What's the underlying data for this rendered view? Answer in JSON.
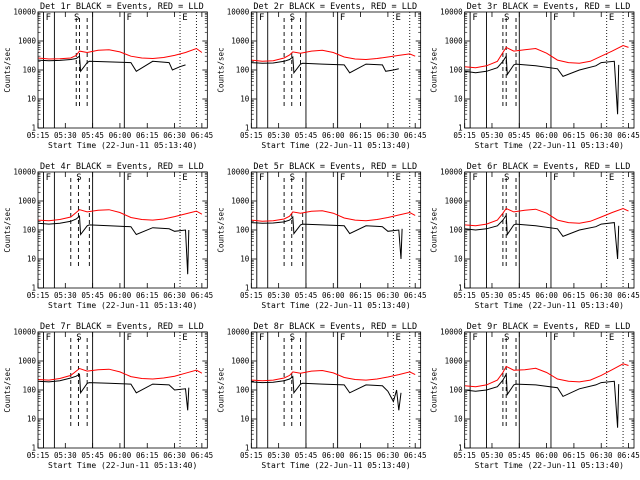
{
  "chart_data": {
    "type": "line",
    "layout": "3x3 grid",
    "y_scale": "log",
    "ylim": [
      1,
      10000
    ],
    "x_range_hours": [
      5.25,
      6.8
    ],
    "y_ticks": [
      "1",
      "10",
      "100",
      "1000",
      "10000"
    ],
    "x_ticks": [
      "05:15",
      "05:30",
      "05:45",
      "06:00",
      "06:15",
      "06:30",
      "06:45"
    ],
    "ylabel": "Counts/sec",
    "xlabel": "Start Time (22-Jun-11 05:13:40)",
    "series_colors": {
      "events": "#000000",
      "lld": "#ff0000"
    },
    "flag_labels": [
      "F",
      "S",
      "F",
      "E"
    ],
    "panels": [
      {
        "title": "Det 1r BLACK = Events, RED = LLD",
        "solid_lines": [
          5.3,
          5.4,
          5.75,
          6.04
        ],
        "dashed_lines": [
          5.63,
          5.6,
          5.7
        ],
        "dotted_lines": [
          6.55,
          6.7
        ],
        "series": [
          {
            "name": "LLD",
            "x": [
              5.25,
              5.35,
              5.45,
              5.55,
              5.6,
              5.63,
              5.7,
              5.8,
              5.9,
              6.0,
              6.1,
              6.2,
              6.3,
              6.4,
              6.5,
              6.6,
              6.7,
              6.75
            ],
            "y": [
              260,
              240,
              245,
              260,
              320,
              450,
              400,
              480,
              500,
              420,
              300,
              260,
              250,
              270,
              320,
              400,
              550,
              400
            ]
          },
          {
            "name": "Events",
            "x": [
              5.25,
              5.35,
              5.45,
              5.55,
              5.6,
              5.63,
              5.64,
              5.7,
              5.72,
              5.9,
              6.1,
              6.15,
              6.3,
              6.45,
              6.48,
              6.55,
              6.6
            ],
            "y": [
              220,
              210,
              215,
              230,
              250,
              300,
              90,
              180,
              200,
              190,
              180,
              90,
              200,
              180,
              100,
              130,
              150
            ]
          }
        ]
      },
      {
        "title": "Det 2r BLACK = Events, RED = LLD",
        "solid_lines": [
          5.3,
          5.4,
          5.75,
          6.04
        ],
        "dashed_lines": [
          5.55,
          5.62,
          5.7
        ],
        "dotted_lines": [
          6.55,
          6.7
        ],
        "series": [
          {
            "name": "LLD",
            "x": [
              5.25,
              5.35,
              5.45,
              5.55,
              5.6,
              5.63,
              5.7,
              5.8,
              5.9,
              6.0,
              6.1,
              6.2,
              6.3,
              6.4,
              6.5,
              6.6,
              6.7,
              6.75
            ],
            "y": [
              220,
              200,
              210,
              260,
              330,
              420,
              380,
              450,
              480,
              400,
              280,
              240,
              230,
              250,
              280,
              320,
              360,
              300
            ]
          },
          {
            "name": "Events",
            "x": [
              5.25,
              5.35,
              5.45,
              5.55,
              5.6,
              5.63,
              5.64,
              5.7,
              5.72,
              5.9,
              6.1,
              6.15,
              6.3,
              6.45,
              6.48,
              6.55,
              6.6
            ],
            "y": [
              180,
              170,
              175,
              200,
              230,
              280,
              80,
              160,
              170,
              160,
              150,
              80,
              160,
              150,
              90,
              100,
              110
            ]
          }
        ]
      },
      {
        "title": "Det 3r BLACK = Events, RED = LLD",
        "solid_lines": [
          5.3,
          5.45,
          5.75,
          6.04
        ],
        "dashed_lines": [
          5.6,
          5.63,
          5.72
        ],
        "dotted_lines": [
          6.55,
          6.7
        ],
        "series": [
          {
            "name": "LLD",
            "x": [
              5.25,
              5.35,
              5.45,
              5.55,
              5.6,
              5.63,
              5.7,
              5.8,
              5.9,
              6.0,
              6.1,
              6.2,
              6.3,
              6.4,
              6.5,
              6.6,
              6.7,
              6.75
            ],
            "y": [
              130,
              120,
              140,
              200,
              400,
              600,
              450,
              500,
              550,
              380,
              220,
              180,
              170,
              200,
              300,
              450,
              700,
              600
            ]
          },
          {
            "name": "Events",
            "x": [
              5.25,
              5.35,
              5.45,
              5.55,
              5.6,
              5.63,
              5.64,
              5.7,
              5.72,
              5.9,
              6.1,
              6.15,
              6.3,
              6.45,
              6.5,
              6.62,
              6.65,
              6.66
            ],
            "y": [
              90,
              80,
              90,
              120,
              200,
              300,
              70,
              150,
              160,
              140,
              110,
              60,
              100,
              140,
              180,
              200,
              3,
              150
            ]
          }
        ]
      },
      {
        "title": "Det 4r BLACK = Events, RED = LLD",
        "solid_lines": [
          5.3,
          5.4,
          5.75,
          6.04
        ],
        "dashed_lines": [
          5.55,
          5.62,
          5.72
        ],
        "dotted_lines": [
          6.55,
          6.7
        ],
        "series": [
          {
            "name": "LLD",
            "x": [
              5.25,
              5.35,
              5.45,
              5.55,
              5.6,
              5.63,
              5.7,
              5.8,
              5.9,
              6.0,
              6.1,
              6.2,
              6.3,
              6.4,
              6.5,
              6.6,
              6.7,
              6.75
            ],
            "y": [
              220,
              210,
              230,
              280,
              400,
              500,
              420,
              480,
              500,
              400,
              270,
              230,
              220,
              240,
              290,
              360,
              450,
              350
            ]
          },
          {
            "name": "Events",
            "x": [
              5.25,
              5.35,
              5.45,
              5.55,
              5.6,
              5.63,
              5.64,
              5.7,
              5.72,
              5.9,
              6.1,
              6.15,
              6.3,
              6.45,
              6.5,
              6.6,
              6.62,
              6.63
            ],
            "y": [
              170,
              160,
              170,
              200,
              240,
              300,
              70,
              140,
              150,
              140,
              130,
              70,
              120,
              110,
              90,
              100,
              3,
              100
            ]
          }
        ]
      },
      {
        "title": "Det 5r BLACK = Events, RED = LLD",
        "solid_lines": [
          5.3,
          5.4,
          5.75,
          6.04
        ],
        "dashed_lines": [
          5.55,
          5.62,
          5.72
        ],
        "dotted_lines": [
          6.55,
          6.7
        ],
        "series": [
          {
            "name": "LLD",
            "x": [
              5.25,
              5.35,
              5.45,
              5.55,
              5.6,
              5.63,
              5.7,
              5.8,
              5.9,
              6.0,
              6.1,
              6.2,
              6.3,
              6.4,
              6.5,
              6.6,
              6.7,
              6.75
            ],
            "y": [
              220,
              200,
              210,
              240,
              300,
              420,
              380,
              440,
              460,
              380,
              260,
              220,
              210,
              230,
              270,
              330,
              400,
              320
            ]
          },
          {
            "name": "Events",
            "x": [
              5.25,
              5.35,
              5.45,
              5.55,
              5.6,
              5.63,
              5.64,
              5.7,
              5.72,
              5.9,
              6.1,
              6.15,
              6.3,
              6.45,
              6.5,
              6.6,
              6.62,
              6.63
            ],
            "y": [
              180,
              170,
              175,
              190,
              220,
              280,
              75,
              150,
              160,
              150,
              140,
              75,
              140,
              130,
              90,
              100,
              10,
              110
            ]
          }
        ]
      },
      {
        "title": "Det 6r BLACK = Events, RED = LLD",
        "solid_lines": [
          5.3,
          5.45,
          5.75,
          6.04
        ],
        "dashed_lines": [
          5.6,
          5.63,
          5.72
        ],
        "dotted_lines": [
          6.55,
          6.7
        ],
        "series": [
          {
            "name": "LLD",
            "x": [
              5.25,
              5.35,
              5.45,
              5.55,
              5.6,
              5.63,
              5.7,
              5.8,
              5.9,
              6.0,
              6.1,
              6.2,
              6.3,
              6.4,
              6.5,
              6.6,
              6.7,
              6.75
            ],
            "y": [
              150,
              140,
              160,
              220,
              380,
              550,
              420,
              480,
              520,
              380,
              220,
              180,
              170,
              200,
              280,
              400,
              550,
              450
            ]
          },
          {
            "name": "Events",
            "x": [
              5.25,
              5.35,
              5.45,
              5.55,
              5.6,
              5.63,
              5.64,
              5.7,
              5.72,
              5.9,
              6.1,
              6.15,
              6.3,
              6.45,
              6.5,
              6.62,
              6.65,
              6.66
            ],
            "y": [
              110,
              100,
              110,
              140,
              220,
              320,
              70,
              150,
              160,
              140,
              110,
              60,
              100,
              130,
              160,
              180,
              10,
              140
            ]
          }
        ]
      },
      {
        "title": "Det 7r BLACK = Events, RED = LLD",
        "solid_lines": [
          5.3,
          5.4,
          5.75,
          6.04
        ],
        "dashed_lines": [
          5.55,
          5.62,
          5.7
        ],
        "dotted_lines": [
          6.55,
          6.7
        ],
        "series": [
          {
            "name": "LLD",
            "x": [
              5.25,
              5.35,
              5.45,
              5.55,
              5.6,
              5.63,
              5.7,
              5.8,
              5.9,
              6.0,
              6.1,
              6.2,
              6.3,
              6.4,
              6.5,
              6.6,
              6.7,
              6.75
            ],
            "y": [
              230,
              220,
              250,
              320,
              450,
              550,
              450,
              500,
              520,
              420,
              290,
              250,
              240,
              260,
              300,
              380,
              480,
              380
            ]
          },
          {
            "name": "Events",
            "x": [
              5.25,
              5.35,
              5.45,
              5.55,
              5.6,
              5.63,
              5.64,
              5.7,
              5.72,
              5.9,
              6.1,
              6.15,
              6.3,
              6.45,
              6.5,
              6.6,
              6.62,
              6.63
            ],
            "y": [
              200,
              190,
              210,
              260,
              300,
              350,
              80,
              170,
              180,
              170,
              160,
              80,
              160,
              150,
              100,
              110,
              20,
              120
            ]
          }
        ]
      },
      {
        "title": "Det 8r BLACK = Events, RED = LLD",
        "solid_lines": [
          5.3,
          5.4,
          5.75,
          6.04
        ],
        "dashed_lines": [
          5.55,
          5.62,
          5.7
        ],
        "dotted_lines": [
          6.55,
          6.7
        ],
        "series": [
          {
            "name": "LLD",
            "x": [
              5.25,
              5.35,
              5.45,
              5.55,
              5.6,
              5.63,
              5.7,
              5.8,
              5.9,
              6.0,
              6.1,
              6.2,
              6.3,
              6.4,
              6.5,
              6.6,
              6.7,
              6.75
            ],
            "y": [
              220,
              210,
              220,
              260,
              320,
              420,
              380,
              450,
              470,
              390,
              270,
              230,
              220,
              240,
              280,
              340,
              420,
              340
            ]
          },
          {
            "name": "Events",
            "x": [
              5.25,
              5.35,
              5.45,
              5.55,
              5.6,
              5.63,
              5.64,
              5.7,
              5.72,
              5.9,
              6.1,
              6.15,
              6.3,
              6.45,
              6.5,
              6.55,
              6.58,
              6.6,
              6.62
            ],
            "y": [
              190,
              180,
              185,
              210,
              240,
              290,
              80,
              160,
              170,
              160,
              150,
              80,
              150,
              140,
              90,
              40,
              100,
              20,
              80
            ]
          }
        ]
      },
      {
        "title": "Det 9r BLACK = Events, RED = LLD",
        "solid_lines": [
          5.3,
          5.45,
          5.75,
          6.04
        ],
        "dashed_lines": [
          5.6,
          5.63,
          5.72
        ],
        "dotted_lines": [
          6.55,
          6.7
        ],
        "series": [
          {
            "name": "LLD",
            "x": [
              5.25,
              5.35,
              5.45,
              5.55,
              5.6,
              5.63,
              5.7,
              5.8,
              5.9,
              6.0,
              6.1,
              6.2,
              6.3,
              6.4,
              6.5,
              6.6,
              6.7,
              6.75
            ],
            "y": [
              140,
              130,
              150,
              220,
              400,
              650,
              480,
              500,
              560,
              400,
              240,
              200,
              190,
              220,
              320,
              500,
              800,
              700
            ]
          },
          {
            "name": "Events",
            "x": [
              5.25,
              5.35,
              5.45,
              5.55,
              5.6,
              5.63,
              5.64,
              5.7,
              5.72,
              5.9,
              6.1,
              6.15,
              6.3,
              6.45,
              6.5,
              6.62,
              6.65,
              6.66
            ],
            "y": [
              100,
              90,
              100,
              130,
              220,
              350,
              70,
              150,
              160,
              150,
              120,
              60,
              110,
              150,
              180,
              200,
              5,
              160
            ]
          }
        ]
      }
    ]
  }
}
